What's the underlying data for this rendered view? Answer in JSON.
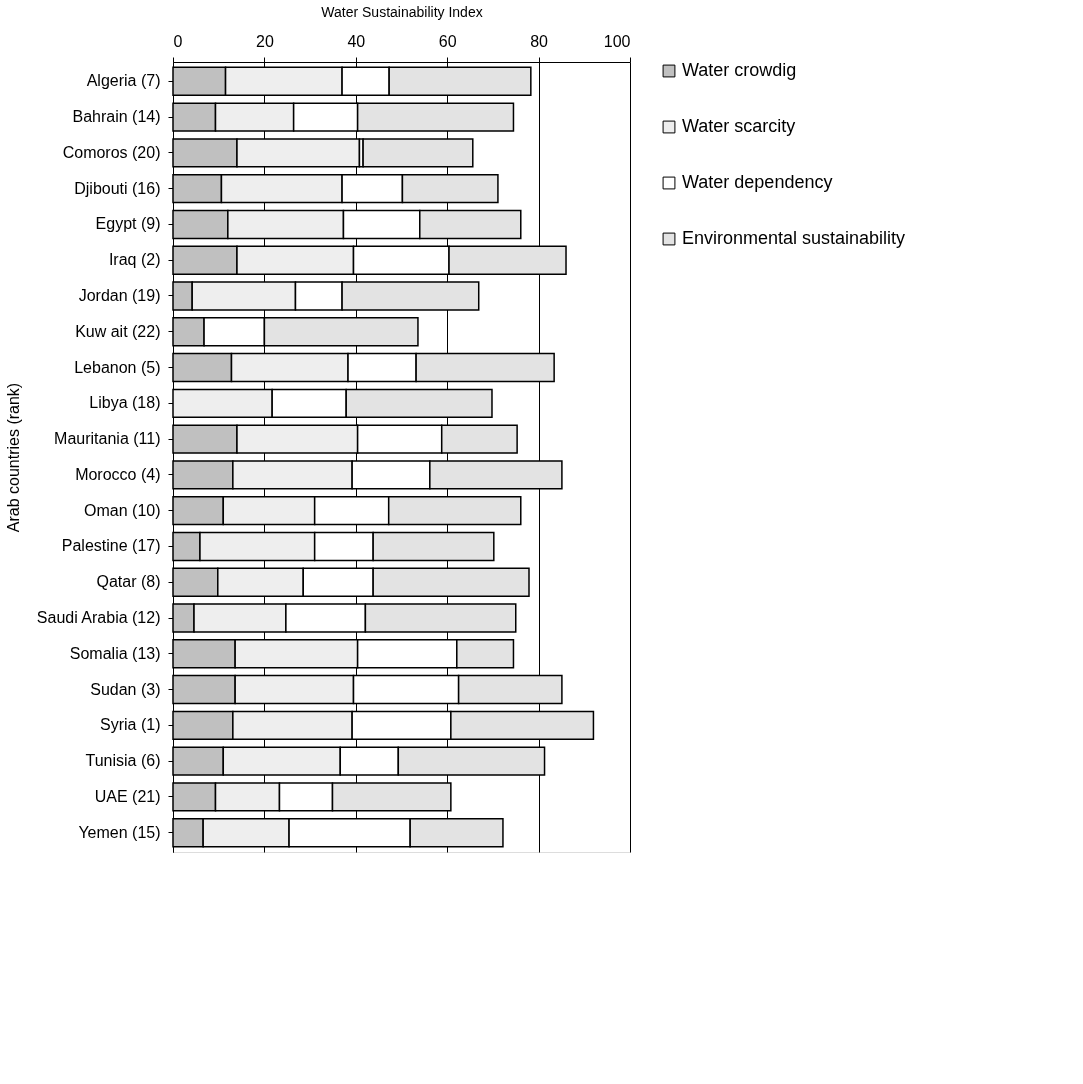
{
  "chart_data": {
    "type": "bar",
    "orientation": "horizontal",
    "stacked": true,
    "xlabel": "Water Sustainability Index",
    "ylabel": "Arab countries (rank)",
    "categories": [
      "Algeria (7)",
      "Bahrain (14)",
      "Comoros (20)",
      "Djibouti (16)",
      "Egypt (9)",
      "Iraq (2)",
      "Jordan (19)",
      "Kuw ait (22)",
      "Lebanon (5)",
      "Libya (18)",
      "Mauritania (11)",
      "Morocco (4)",
      "Oman (10)",
      "Palestine (17)",
      "Qatar (8)",
      "Saudi Arabia (12)",
      "Somalia (13)",
      "Sudan (3)",
      "Syria (1)",
      "Tunisia (6)",
      "UAE (21)",
      "Yemen (15)"
    ],
    "series": [
      {
        "name": "Water crowdig",
        "color": "#c0c0c0",
        "values": [
          11.5,
          9.3,
          14.0,
          10.6,
          12.0,
          14.0,
          4.2,
          6.8,
          12.8,
          null,
          14.0,
          13.1,
          11.0,
          5.9,
          9.8,
          4.6,
          13.6,
          13.6,
          13.1,
          11.0,
          9.3,
          6.6
        ]
      },
      {
        "name": "Water scarcity",
        "color": "#eeeeee",
        "values": [
          25.5,
          17.1,
          26.8,
          26.4,
          25.3,
          25.5,
          22.6,
          null,
          25.5,
          21.7,
          26.4,
          26.1,
          20.0,
          25.1,
          18.7,
          20.1,
          26.8,
          25.9,
          26.1,
          25.6,
          14.0,
          18.8
        ]
      },
      {
        "name": "Water dependency",
        "color": "#ffffff",
        "values": [
          10.3,
          14.0,
          0.8,
          13.2,
          16.7,
          20.9,
          10.2,
          13.2,
          14.9,
          16.2,
          18.4,
          17.0,
          16.2,
          12.8,
          15.3,
          17.4,
          21.7,
          23.0,
          21.6,
          12.7,
          11.6,
          26.5
        ]
      },
      {
        "name": "Environmental sustainability",
        "color": "#e3e3e3",
        "values": [
          31.0,
          34.1,
          24.0,
          20.9,
          22.1,
          25.6,
          29.9,
          33.6,
          30.2,
          31.9,
          16.5,
          28.9,
          28.9,
          26.4,
          34.1,
          32.9,
          12.4,
          22.6,
          31.2,
          32.0,
          25.9,
          20.3
        ]
      }
    ],
    "xlim": [
      0,
      100
    ],
    "xticks": [
      0,
      20,
      40,
      60,
      80,
      100
    ],
    "grid": "x",
    "legend": "right"
  }
}
